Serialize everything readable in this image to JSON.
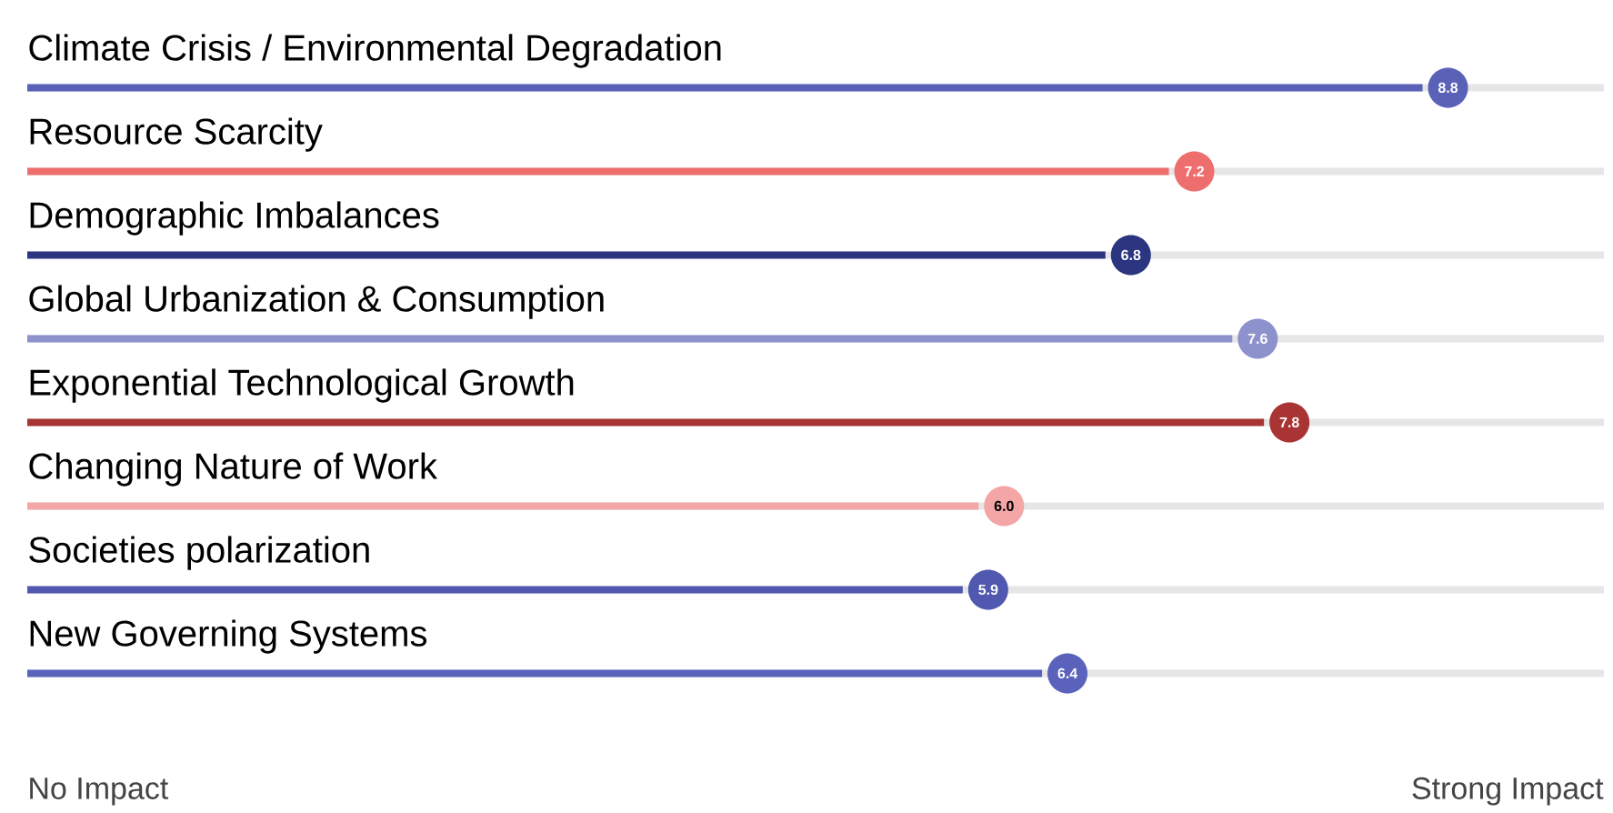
{
  "chart_data": {
    "type": "bar",
    "orientation": "horizontal",
    "categories": [
      "Climate Crisis / Environmental Degradation",
      "Resource Scarcity",
      "Demographic Imbalances",
      "Global Urbanization & Consumption",
      "Exponential Technological Growth",
      "Changing Nature of Work",
      "Societies polarization",
      "New Governing Systems"
    ],
    "values": [
      8.8,
      7.2,
      6.8,
      7.6,
      7.8,
      6.0,
      5.9,
      6.4
    ],
    "value_labels": [
      "8.8",
      "7.2",
      "6.8",
      "7.6",
      "7.8",
      "6.0",
      "5.9",
      "6.4"
    ],
    "colors": [
      "#5a62b8",
      "#ee6e6e",
      "#2b3580",
      "#8e92cc",
      "#a83434",
      "#f4a6a6",
      "#5058b0",
      "#5a62bc"
    ],
    "annotations": [
      "No Impact",
      "Strong Impact"
    ]
  }
}
